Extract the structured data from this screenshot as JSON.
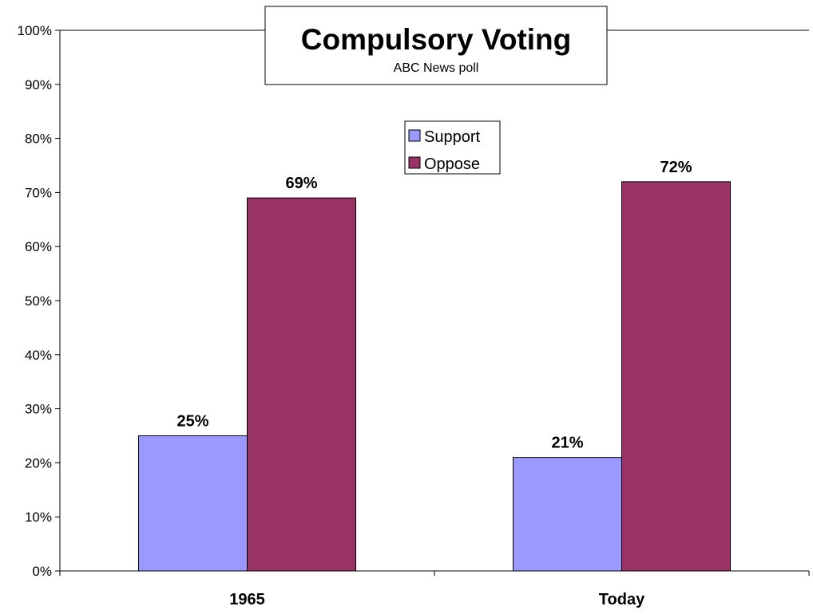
{
  "chart_data": {
    "type": "bar",
    "title": "Compulsory Voting",
    "subtitle": "ABC News poll",
    "categories": [
      "1965",
      "Today"
    ],
    "series": [
      {
        "name": "Support",
        "values": [
          25,
          21
        ],
        "labels": [
          "25%",
          "21%"
        ],
        "color": "#9999ff"
      },
      {
        "name": "Oppose",
        "values": [
          69,
          72
        ],
        "labels": [
          "69%",
          "72%"
        ],
        "color": "#993366"
      }
    ],
    "ylim": [
      0,
      100
    ],
    "y_ticks": [
      0,
      10,
      20,
      30,
      40,
      50,
      60,
      70,
      80,
      90,
      100
    ],
    "y_tick_labels": [
      "0%",
      "10%",
      "20%",
      "30%",
      "40%",
      "50%",
      "60%",
      "70%",
      "80%",
      "90%",
      "100%"
    ],
    "xlabel": "",
    "ylabel": "",
    "grid": false,
    "legend_position": "top-center"
  }
}
